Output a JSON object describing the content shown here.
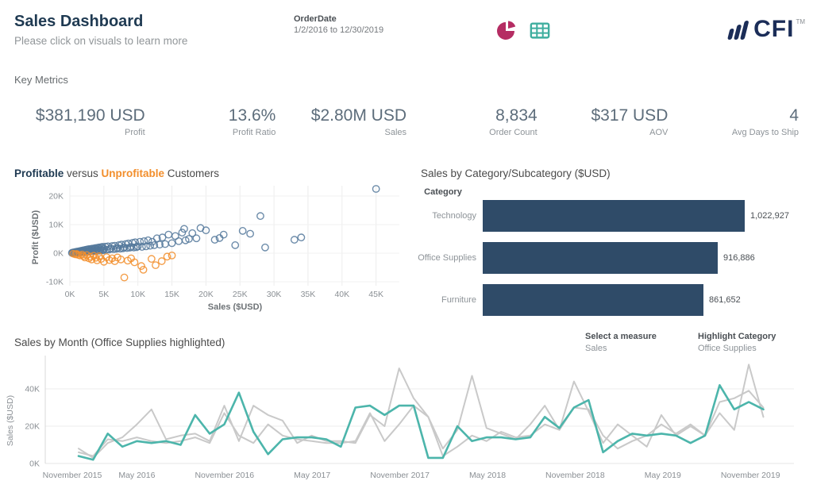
{
  "header": {
    "title": "Sales Dashboard",
    "subtitle": "Please click on visuals to learn more",
    "filter_label": "OrderDate",
    "filter_value": "1/2/2016 to 12/30/2019",
    "logo_text": "CFI",
    "logo_tm": "TM"
  },
  "key_metrics": {
    "section_label": "Key Metrics",
    "items": [
      {
        "value": "$381,190 USD",
        "label": "Profit"
      },
      {
        "value": "13.6%",
        "label": "Profit Ratio"
      },
      {
        "value": "$2.80M USD",
        "label": "Sales"
      },
      {
        "value": "8,834",
        "label": "Order Count"
      },
      {
        "value": "$317 USD",
        "label": "AOV"
      },
      {
        "value": "4",
        "label": "Avg Days to Ship"
      }
    ]
  },
  "controls": {
    "measure_label": "Select a measure",
    "measure_value": "Sales",
    "highlight_label": "Highlight Category",
    "highlight_value": "Office Supplies"
  },
  "colors": {
    "bar": "#2f4b68",
    "teal_line": "#4cb5ab",
    "grey_line": "#c9c9c9",
    "scatter_profit": "#54789b",
    "scatter_loss": "#f28e2b",
    "pie_icon": "#b52d63",
    "table_icon": "#3fae9f",
    "logo": "#1b2d58",
    "gridline": "#ececec"
  },
  "chart_data": [
    {
      "type": "scatter",
      "title": {
        "bold": "Profitable",
        "mid": " versus ",
        "orange": "Unprofitable",
        "suffix": " Customers"
      },
      "xlabel": "Sales ($USD)",
      "ylabel": "Profit ($USD)",
      "x_ticks": [
        "0K",
        "5K",
        "10K",
        "15K",
        "20K",
        "25K",
        "30K",
        "35K",
        "40K",
        "45K"
      ],
      "x_tick_values": [
        0,
        5,
        10,
        15,
        20,
        25,
        30,
        35,
        40,
        45
      ],
      "y_ticks": [
        "20K",
        "10K",
        "0K",
        "-10K"
      ],
      "y_tick_values": [
        20,
        10,
        0,
        -10
      ],
      "xlim": [
        0,
        47
      ],
      "ylim": [
        -12,
        24
      ],
      "units": "thousands USD",
      "series": [
        {
          "name": "Profitable",
          "points": [
            [
              0.3,
              0.1
            ],
            [
              0.4,
              0.2
            ],
            [
              0.5,
              0.1
            ],
            [
              0.6,
              0.3
            ],
            [
              0.7,
              0.2
            ],
            [
              0.8,
              0.4
            ],
            [
              0.9,
              0.2
            ],
            [
              1.0,
              0.5
            ],
            [
              1.1,
              0.3
            ],
            [
              1.2,
              0.6
            ],
            [
              1.3,
              0.2
            ],
            [
              1.4,
              0.7
            ],
            [
              1.5,
              0.4
            ],
            [
              1.6,
              0.8
            ],
            [
              1.7,
              0.3
            ],
            [
              1.8,
              0.9
            ],
            [
              1.9,
              0.5
            ],
            [
              2.0,
              1.0
            ],
            [
              2.1,
              0.4
            ],
            [
              2.2,
              1.1
            ],
            [
              2.3,
              0.6
            ],
            [
              2.4,
              1.2
            ],
            [
              2.5,
              0.5
            ],
            [
              2.6,
              1.3
            ],
            [
              2.7,
              0.7
            ],
            [
              2.8,
              1.4
            ],
            [
              2.9,
              0.6
            ],
            [
              3.0,
              1.0
            ],
            [
              3.1,
              1.5
            ],
            [
              3.2,
              0.8
            ],
            [
              3.3,
              1.6
            ],
            [
              3.4,
              0.7
            ],
            [
              3.5,
              1.2
            ],
            [
              3.6,
              1.7
            ],
            [
              3.7,
              0.9
            ],
            [
              3.8,
              1.8
            ],
            [
              3.9,
              0.8
            ],
            [
              4.0,
              1.3
            ],
            [
              4.1,
              1.9
            ],
            [
              4.2,
              1.0
            ],
            [
              4.3,
              2.0
            ],
            [
              4.4,
              0.9
            ],
            [
              4.5,
              1.4
            ],
            [
              4.6,
              2.1
            ],
            [
              4.7,
              1.1
            ],
            [
              4.8,
              2.2
            ],
            [
              4.9,
              1.0
            ],
            [
              5.0,
              1.5
            ],
            [
              5.2,
              2.3
            ],
            [
              5.4,
              1.2
            ],
            [
              5.6,
              2.4
            ],
            [
              5.8,
              1.3
            ],
            [
              6.0,
              1.6
            ],
            [
              6.2,
              2.5
            ],
            [
              6.4,
              1.4
            ],
            [
              6.6,
              2.6
            ],
            [
              6.8,
              1.5
            ],
            [
              7.0,
              1.8
            ],
            [
              7.2,
              2.8
            ],
            [
              7.4,
              1.6
            ],
            [
              7.6,
              3.0
            ],
            [
              7.8,
              1.7
            ],
            [
              8.0,
              2.0
            ],
            [
              8.2,
              3.2
            ],
            [
              8.4,
              1.8
            ],
            [
              8.6,
              3.4
            ],
            [
              8.8,
              1.9
            ],
            [
              9.0,
              2.2
            ],
            [
              9.2,
              3.6
            ],
            [
              9.4,
              2.0
            ],
            [
              9.6,
              3.8
            ],
            [
              9.8,
              2.1
            ],
            [
              10.0,
              2.4
            ],
            [
              10.3,
              4.0
            ],
            [
              10.6,
              2.2
            ],
            [
              10.9,
              4.2
            ],
            [
              11.2,
              2.4
            ],
            [
              11.5,
              4.5
            ],
            [
              11.8,
              2.6
            ],
            [
              12.1,
              4.0
            ],
            [
              12.4,
              2.8
            ],
            [
              12.8,
              5.2
            ],
            [
              13.2,
              3.0
            ],
            [
              13.6,
              5.5
            ],
            [
              14.0,
              3.2
            ],
            [
              14.5,
              6.5
            ],
            [
              15.0,
              3.5
            ],
            [
              15.5,
              6.0
            ],
            [
              16.0,
              4.2
            ],
            [
              16.5,
              7.2
            ],
            [
              16.8,
              8.5
            ],
            [
              17.0,
              4.5
            ],
            [
              17.5,
              5.0
            ],
            [
              18.0,
              7.0
            ],
            [
              18.6,
              5.2
            ],
            [
              19.2,
              8.8
            ],
            [
              20.0,
              8.0
            ],
            [
              21.3,
              4.7
            ],
            [
              22.0,
              5.3
            ],
            [
              22.6,
              6.5
            ],
            [
              24.3,
              2.8
            ],
            [
              25.4,
              7.8
            ],
            [
              26.5,
              6.8
            ],
            [
              28.0,
              13.0
            ],
            [
              28.7,
              2.0
            ],
            [
              33.0,
              4.7
            ],
            [
              34.0,
              5.5
            ],
            [
              45.0,
              22.5
            ]
          ]
        },
        {
          "name": "Unprofitable",
          "points": [
            [
              0.5,
              -0.2
            ],
            [
              0.8,
              -0.4
            ],
            [
              1.0,
              -0.3
            ],
            [
              1.2,
              -0.6
            ],
            [
              1.5,
              -0.8
            ],
            [
              1.8,
              -0.5
            ],
            [
              2.0,
              -1.0
            ],
            [
              2.2,
              -1.5
            ],
            [
              2.5,
              -0.7
            ],
            [
              2.8,
              -1.8
            ],
            [
              3.0,
              -1.2
            ],
            [
              3.2,
              -2.2
            ],
            [
              3.5,
              -0.9
            ],
            [
              3.8,
              -1.6
            ],
            [
              4.0,
              -2.5
            ],
            [
              4.3,
              -1.1
            ],
            [
              4.6,
              -2.0
            ],
            [
              5.0,
              -3.0
            ],
            [
              5.4,
              -1.4
            ],
            [
              5.8,
              -2.4
            ],
            [
              6.2,
              -1.8
            ],
            [
              6.6,
              -2.8
            ],
            [
              7.0,
              -1.5
            ],
            [
              7.5,
              -2.2
            ],
            [
              8.0,
              -8.5
            ],
            [
              8.5,
              -2.6
            ],
            [
              9.0,
              -1.8
            ],
            [
              9.5,
              -3.2
            ],
            [
              10.5,
              -4.5
            ],
            [
              10.8,
              -5.8
            ],
            [
              12.0,
              -2.0
            ],
            [
              12.6,
              -4.2
            ],
            [
              13.5,
              -2.8
            ],
            [
              14.3,
              -1.2
            ],
            [
              15.0,
              -0.8
            ]
          ]
        }
      ]
    },
    {
      "type": "bar",
      "title": "Sales by Category/Subcategory ($USD)",
      "axis_label": "Category",
      "categories": [
        "Technology",
        "Office Supplies",
        "Furniture"
      ],
      "values": [
        1022927,
        916886,
        861652
      ],
      "value_labels": [
        "1,022,927",
        "916,886",
        "861,652"
      ]
    },
    {
      "type": "line",
      "title": "Sales by Month (Office Supplies highlighted)",
      "ylabel": "Sales ($USD)",
      "y_ticks": [
        "0K",
        "20K",
        "40K"
      ],
      "y_tick_values": [
        0,
        20,
        40
      ],
      "ylim": [
        0,
        55
      ],
      "x_ticks": [
        "November 2015",
        "May 2016",
        "November 2016",
        "May 2017",
        "November 2017",
        "May 2018",
        "November 2018",
        "May 2019",
        "November 2019"
      ],
      "x_range": "January 2016 to December 2019, monthly",
      "units": "thousands USD",
      "highlighted_series": "Office Supplies",
      "series": [
        {
          "name": "Technology",
          "highlight": false,
          "values": [
            8,
            3,
            11,
            14,
            21,
            29,
            13,
            15,
            16,
            12,
            31,
            12,
            31,
            26,
            23,
            11,
            15,
            12,
            12,
            11,
            26,
            20,
            51,
            35,
            25,
            8,
            18,
            47,
            19,
            16,
            13,
            21,
            31,
            18,
            44,
            28,
            11,
            21,
            15,
            9,
            26,
            15,
            20,
            15,
            27,
            18,
            53,
            25
          ]
        },
        {
          "name": "Furniture",
          "highlight": false,
          "values": [
            6,
            4,
            13,
            12,
            14,
            12,
            11,
            12,
            14,
            11,
            27,
            15,
            11,
            21,
            15,
            13,
            12,
            11,
            11,
            12,
            27,
            12,
            21,
            31,
            25,
            4,
            9,
            15,
            12,
            17,
            14,
            15,
            21,
            18,
            30,
            29,
            15,
            8,
            12,
            15,
            21,
            16,
            21,
            15,
            33,
            35,
            39,
            30
          ]
        },
        {
          "name": "Office Supplies",
          "highlight": true,
          "values": [
            4,
            2,
            16,
            9,
            12,
            11,
            12,
            10,
            26,
            16,
            21,
            38,
            17,
            5,
            13,
            14,
            14,
            13,
            9,
            30,
            31,
            26,
            31,
            31,
            3,
            3,
            20,
            12,
            14,
            14,
            13,
            14,
            25,
            19,
            30,
            34,
            6,
            12,
            16,
            15,
            16,
            15,
            11,
            15,
            42,
            29,
            33,
            29
          ]
        }
      ]
    }
  ]
}
